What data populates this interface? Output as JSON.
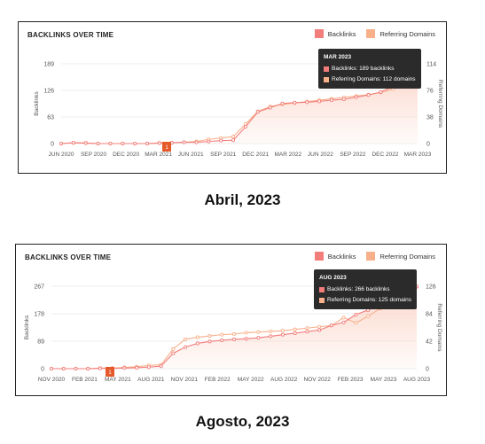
{
  "colors": {
    "backlinks": "#f27d7b",
    "referring": "#f8b08a",
    "area": "#fbd5c8",
    "marker": "#e55a2b"
  },
  "charts": [
    {
      "title": "BACKLINKS OVER TIME",
      "legend": [
        "Backlinks",
        "Referring Domains"
      ],
      "tooltip": {
        "title": "MAR 2023",
        "backlinks": "Backlinks: 189 backlinks",
        "referring": "Referring Domains: 112 domains"
      },
      "caption": "Abril, 2023",
      "marker": "1"
    },
    {
      "title": "BACKLINKS OVER TIME",
      "legend": [
        "Backlinks",
        "Referring Domains"
      ],
      "tooltip": {
        "title": "AUG 2023",
        "backlinks": "Backlinks: 266 backlinks",
        "referring": "Referring Domains: 125 domains"
      },
      "caption": "Agosto, 2023",
      "marker": "1"
    }
  ],
  "chart_data": [
    {
      "type": "line",
      "title": "BACKLINKS OVER TIME",
      "ylabel": "Backlinks",
      "y2label": "Referring Domains",
      "ylim": [
        0,
        189
      ],
      "y2lim": [
        0,
        114
      ],
      "yticks": [
        "0",
        "63",
        "126",
        "189"
      ],
      "y2ticks": [
        "0",
        "38",
        "76",
        "114"
      ],
      "xticks": [
        "JUN 2020",
        "SEP 2020",
        "DEC 2020",
        "MAR 2021",
        "JUN 2021",
        "SEP 2021",
        "DEC 2021",
        "MAR 2022",
        "JUN 2022",
        "SEP 2022",
        "DEC 2022",
        "MAR 2023"
      ],
      "series": [
        {
          "name": "Backlinks",
          "values": [
            0,
            2,
            1,
            0,
            0,
            0,
            0,
            0,
            1,
            2,
            3,
            3,
            5,
            7,
            8,
            40,
            75,
            85,
            95,
            97,
            98,
            100,
            103,
            105,
            110,
            115,
            122,
            135,
            165,
            189
          ]
        },
        {
          "name": "Referring Domains",
          "values": [
            0,
            1,
            1,
            0,
            0,
            0,
            0,
            0,
            1,
            1,
            2,
            3,
            6,
            8,
            10,
            28,
            46,
            53,
            56,
            58,
            60,
            62,
            64,
            66,
            68,
            70,
            73,
            78,
            90,
            112
          ]
        }
      ]
    },
    {
      "type": "line",
      "title": "BACKLINKS OVER TIME",
      "ylabel": "Backlinks",
      "y2label": "Referring Domains",
      "ylim": [
        0,
        267
      ],
      "y2lim": [
        0,
        126
      ],
      "yticks": [
        "0",
        "89",
        "178",
        "267"
      ],
      "y2ticks": [
        "0",
        "42",
        "84",
        "126"
      ],
      "xticks": [
        "NOV 2020",
        "FEB 2021",
        "MAY 2021",
        "AUG 2021",
        "NOV 2021",
        "FEB 2022",
        "MAY 2022",
        "AUG 2022",
        "NOV 2022",
        "FEB 2023",
        "MAY 2023",
        "AUG 2023"
      ],
      "series": [
        {
          "name": "Backlinks",
          "values": [
            0,
            0,
            0,
            0,
            1,
            1,
            2,
            3,
            5,
            8,
            50,
            70,
            82,
            88,
            92,
            95,
            97,
            100,
            105,
            110,
            115,
            120,
            125,
            140,
            150,
            175,
            190,
            205,
            215,
            240,
            266
          ]
        },
        {
          "name": "Referring Domains",
          "values": [
            0,
            0,
            0,
            0,
            1,
            1,
            2,
            3,
            5,
            6,
            30,
            45,
            48,
            50,
            52,
            53,
            55,
            56,
            57,
            58,
            60,
            62,
            64,
            66,
            78,
            70,
            80,
            92,
            100,
            110,
            125
          ]
        }
      ]
    }
  ]
}
